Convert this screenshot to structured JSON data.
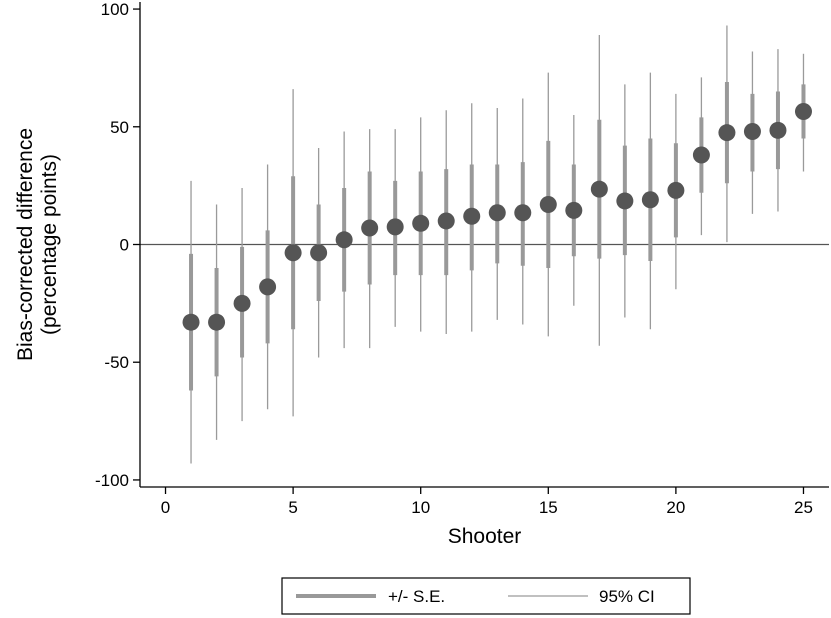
{
  "chart_data": {
    "type": "scatter",
    "title": "",
    "xlabel": "Shooter",
    "ylabel_lines": [
      "Bias-corrected difference",
      "(percentage points)"
    ],
    "xlim": [
      -1,
      26
    ],
    "ylim": [
      -103,
      103
    ],
    "xticks": [
      0,
      5,
      10,
      15,
      20,
      25
    ],
    "yticks": [
      100,
      50,
      0,
      -50,
      -100
    ],
    "reference_line_y": 0,
    "grid": false,
    "legend_position": "bottom",
    "colors": {
      "marker": "#555555",
      "se_bar": "#999999",
      "ci_line": "#9a9a9a",
      "zero_line": "#555555"
    },
    "series": [
      {
        "name": "+/- S.E.",
        "style": "thick-bar"
      },
      {
        "name": "95% CI",
        "style": "thin-line"
      }
    ],
    "x": [
      1,
      2,
      3,
      4,
      5,
      6,
      7,
      8,
      9,
      10,
      11,
      12,
      13,
      14,
      15,
      16,
      17,
      18,
      19,
      20,
      21,
      22,
      23,
      24,
      25
    ],
    "estimate": [
      -33,
      -33,
      -25,
      -18,
      -3.5,
      -3.5,
      2,
      7,
      7.5,
      9,
      10,
      12,
      13.5,
      13.5,
      17,
      14.5,
      23.5,
      18.5,
      19,
      23,
      38,
      47.5,
      48,
      48.5,
      56.5
    ],
    "se_low": [
      -62,
      -56,
      -48,
      -42,
      -36,
      -24,
      -20,
      -17,
      -13,
      -13,
      -13,
      -11,
      -8,
      -9,
      -10,
      -5,
      -6,
      -4.5,
      -7,
      3,
      22,
      26,
      31,
      32,
      45
    ],
    "se_high": [
      -4,
      -10,
      -1,
      6,
      29,
      17,
      24,
      31,
      27,
      31,
      32,
      34,
      34,
      35,
      44,
      34,
      53,
      42,
      45,
      43,
      54,
      69,
      64,
      65,
      68
    ],
    "ci_low": [
      -93,
      -83,
      -75,
      -70,
      -73,
      -48,
      -44,
      -44,
      -35,
      -37,
      -38,
      -37,
      -32,
      -34,
      -39,
      -26,
      -43,
      -31,
      -36,
      -19,
      4,
      1,
      13,
      14,
      31
    ],
    "ci_high": [
      27,
      17,
      24,
      34,
      66,
      41,
      48,
      49,
      49,
      54,
      57,
      60,
      58,
      62,
      73,
      55,
      89,
      68,
      73,
      64,
      71,
      93,
      82,
      83,
      81
    ]
  }
}
